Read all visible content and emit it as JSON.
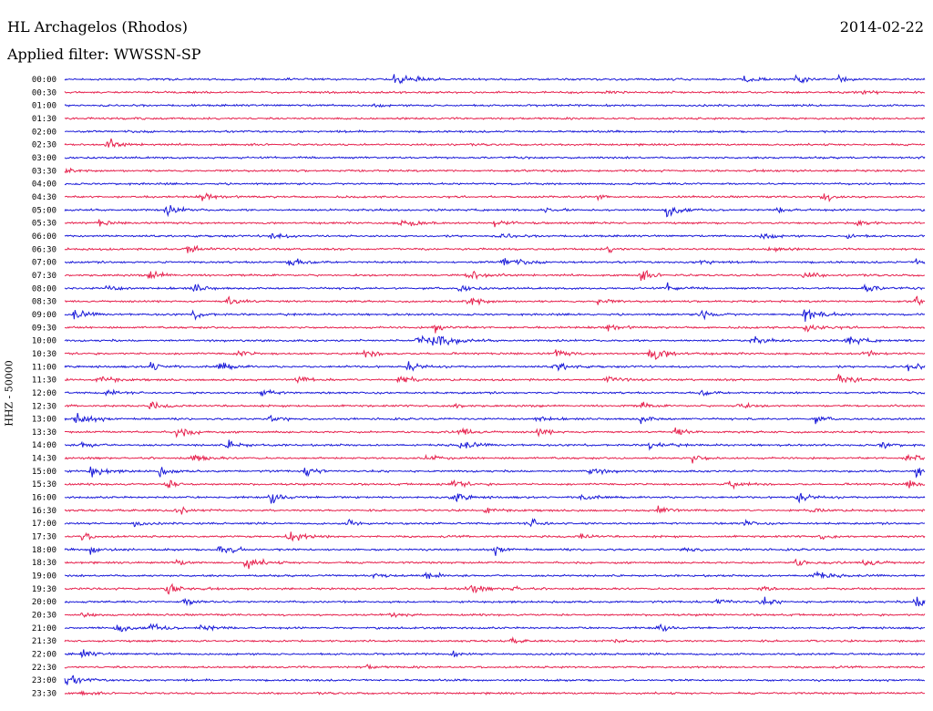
{
  "header": {
    "station": "HL Archagelos (Rhodos)",
    "date": "2014-02-22",
    "filter": "Applied filter: WWSSN-SP"
  },
  "side_label": "HHZ - 50000",
  "colors": {
    "blue": "#1a1ad8",
    "red": "#e6224e"
  },
  "chart_data": {
    "type": "line",
    "title": "HL Archagelos (Rhodos)",
    "subtitle": "Applied filter: WWSSN-SP",
    "ylabel": "HHZ - 50000",
    "date": "2014-02-22",
    "series_colors": [
      "#1a1ad8",
      "#e6224e"
    ],
    "grid": false,
    "rows": [
      {
        "label": "00:00",
        "color": "blue",
        "events": [
          [
            0.385,
            1.0
          ],
          [
            0.79,
            0.5
          ],
          [
            0.85,
            0.5
          ],
          [
            0.9,
            0.3
          ]
        ]
      },
      {
        "label": "00:30",
        "color": "red",
        "events": [
          [
            0.63,
            0.3
          ],
          [
            0.93,
            0.3
          ]
        ]
      },
      {
        "label": "01:00",
        "color": "blue",
        "events": [
          [
            0.36,
            0.2
          ]
        ]
      },
      {
        "label": "01:30",
        "color": "red",
        "events": [
          [
            0.08,
            0.15
          ]
        ]
      },
      {
        "label": "02:00",
        "color": "blue",
        "events": []
      },
      {
        "label": "02:30",
        "color": "red",
        "events": [
          [
            0.05,
            0.6
          ]
        ]
      },
      {
        "label": "03:00",
        "color": "blue",
        "events": [
          [
            0.999,
            0.4
          ]
        ]
      },
      {
        "label": "03:30",
        "color": "red",
        "events": [
          [
            0.0,
            0.3
          ]
        ]
      },
      {
        "label": "04:00",
        "color": "blue",
        "events": []
      },
      {
        "label": "04:30",
        "color": "red",
        "events": [
          [
            0.16,
            0.5
          ],
          [
            0.62,
            0.3
          ],
          [
            0.88,
            0.6
          ]
        ]
      },
      {
        "label": "05:00",
        "color": "blue",
        "events": [
          [
            0.12,
            0.6
          ],
          [
            0.56,
            0.3
          ],
          [
            0.7,
            0.8
          ],
          [
            0.83,
            0.4
          ]
        ]
      },
      {
        "label": "05:30",
        "color": "red",
        "events": [
          [
            0.04,
            0.4
          ],
          [
            0.39,
            0.7
          ],
          [
            0.5,
            0.5
          ],
          [
            0.92,
            0.5
          ]
        ]
      },
      {
        "label": "06:00",
        "color": "blue",
        "events": [
          [
            0.24,
            0.5
          ],
          [
            0.51,
            0.4
          ],
          [
            0.81,
            0.5
          ],
          [
            0.91,
            0.4
          ]
        ]
      },
      {
        "label": "06:30",
        "color": "red",
        "events": [
          [
            0.14,
            0.8
          ],
          [
            0.63,
            0.4
          ],
          [
            0.82,
            0.5
          ]
        ]
      },
      {
        "label": "07:00",
        "color": "blue",
        "events": [
          [
            0.26,
            0.7
          ],
          [
            0.51,
            0.7
          ],
          [
            0.74,
            0.4
          ],
          [
            0.99,
            0.5
          ]
        ]
      },
      {
        "label": "07:30",
        "color": "red",
        "events": [
          [
            0.1,
            0.6
          ],
          [
            0.47,
            0.7
          ],
          [
            0.67,
            0.6
          ],
          [
            0.86,
            0.5
          ]
        ]
      },
      {
        "label": "08:00",
        "color": "blue",
        "events": [
          [
            0.05,
            0.4
          ],
          [
            0.15,
            0.5
          ],
          [
            0.46,
            0.5
          ],
          [
            0.7,
            0.5
          ],
          [
            0.93,
            0.6
          ]
        ]
      },
      {
        "label": "08:30",
        "color": "red",
        "events": [
          [
            0.19,
            0.6
          ],
          [
            0.47,
            0.6
          ],
          [
            0.62,
            0.5
          ],
          [
            0.99,
            0.4
          ]
        ]
      },
      {
        "label": "09:00",
        "color": "blue",
        "events": [
          [
            0.01,
            0.6
          ],
          [
            0.15,
            0.5
          ],
          [
            0.74,
            0.6
          ],
          [
            0.86,
            1.0
          ]
        ]
      },
      {
        "label": "09:30",
        "color": "red",
        "events": [
          [
            0.43,
            0.6
          ],
          [
            0.63,
            0.5
          ],
          [
            0.86,
            0.8
          ]
        ]
      },
      {
        "label": "10:00",
        "color": "blue",
        "events": [
          [
            0.41,
            0.8
          ],
          [
            0.43,
            1.0
          ],
          [
            0.8,
            0.5
          ],
          [
            0.91,
            0.7
          ]
        ]
      },
      {
        "label": "10:30",
        "color": "red",
        "events": [
          [
            0.2,
            0.5
          ],
          [
            0.35,
            0.5
          ],
          [
            0.57,
            0.5
          ],
          [
            0.68,
            1.0
          ],
          [
            0.93,
            0.5
          ]
        ]
      },
      {
        "label": "11:00",
        "color": "blue",
        "events": [
          [
            0.1,
            0.6
          ],
          [
            0.18,
            0.6
          ],
          [
            0.4,
            0.6
          ],
          [
            0.57,
            0.6
          ],
          [
            0.98,
            0.6
          ]
        ]
      },
      {
        "label": "11:30",
        "color": "red",
        "events": [
          [
            0.04,
            0.6
          ],
          [
            0.27,
            0.5
          ],
          [
            0.39,
            0.6
          ],
          [
            0.63,
            0.5
          ],
          [
            0.9,
            0.8
          ]
        ]
      },
      {
        "label": "12:00",
        "color": "blue",
        "events": [
          [
            0.05,
            0.4
          ],
          [
            0.23,
            0.5
          ],
          [
            0.74,
            0.4
          ]
        ]
      },
      {
        "label": "12:30",
        "color": "red",
        "events": [
          [
            0.1,
            0.5
          ],
          [
            0.45,
            0.4
          ],
          [
            0.67,
            0.4
          ],
          [
            0.78,
            0.5
          ]
        ]
      },
      {
        "label": "13:00",
        "color": "blue",
        "events": [
          [
            0.01,
            0.9
          ],
          [
            0.24,
            0.5
          ],
          [
            0.55,
            0.4
          ],
          [
            0.67,
            0.5
          ],
          [
            0.87,
            0.5
          ]
        ]
      },
      {
        "label": "13:30",
        "color": "red",
        "events": [
          [
            0.13,
            0.7
          ],
          [
            0.46,
            0.6
          ],
          [
            0.55,
            0.5
          ],
          [
            0.71,
            0.5
          ]
        ]
      },
      {
        "label": "14:00",
        "color": "blue",
        "events": [
          [
            0.02,
            0.5
          ],
          [
            0.19,
            0.6
          ],
          [
            0.46,
            0.6
          ],
          [
            0.68,
            0.6
          ],
          [
            0.95,
            0.5
          ]
        ]
      },
      {
        "label": "14:30",
        "color": "red",
        "events": [
          [
            0.15,
            0.6
          ],
          [
            0.42,
            0.5
          ],
          [
            0.73,
            0.5
          ],
          [
            0.98,
            0.8
          ]
        ]
      },
      {
        "label": "15:00",
        "color": "blue",
        "events": [
          [
            0.03,
            0.7
          ],
          [
            0.11,
            0.5
          ],
          [
            0.28,
            0.6
          ],
          [
            0.61,
            0.6
          ],
          [
            0.99,
            0.8
          ]
        ]
      },
      {
        "label": "15:30",
        "color": "red",
        "events": [
          [
            0.12,
            0.5
          ],
          [
            0.45,
            0.6
          ],
          [
            0.77,
            0.6
          ],
          [
            0.98,
            0.5
          ]
        ]
      },
      {
        "label": "16:00",
        "color": "blue",
        "events": [
          [
            0.24,
            0.6
          ],
          [
            0.45,
            0.7
          ],
          [
            0.6,
            0.5
          ],
          [
            0.85,
            0.7
          ]
        ]
      },
      {
        "label": "16:30",
        "color": "red",
        "events": [
          [
            0.13,
            0.5
          ],
          [
            0.49,
            0.4
          ],
          [
            0.69,
            0.6
          ],
          [
            0.87,
            0.4
          ]
        ]
      },
      {
        "label": "17:00",
        "color": "blue",
        "events": [
          [
            0.08,
            0.4
          ],
          [
            0.33,
            0.4
          ],
          [
            0.54,
            0.6
          ],
          [
            0.79,
            0.4
          ]
        ]
      },
      {
        "label": "17:30",
        "color": "red",
        "events": [
          [
            0.02,
            0.5
          ],
          [
            0.26,
            0.8
          ],
          [
            0.6,
            0.4
          ],
          [
            0.88,
            0.4
          ]
        ]
      },
      {
        "label": "18:00",
        "color": "blue",
        "events": [
          [
            0.03,
            0.6
          ],
          [
            0.18,
            0.8
          ],
          [
            0.5,
            0.5
          ],
          [
            0.72,
            0.5
          ]
        ]
      },
      {
        "label": "18:30",
        "color": "red",
        "events": [
          [
            0.13,
            0.4
          ],
          [
            0.21,
            0.8
          ],
          [
            0.85,
            0.5
          ],
          [
            0.93,
            0.6
          ]
        ]
      },
      {
        "label": "19:00",
        "color": "blue",
        "events": [
          [
            0.36,
            0.3
          ],
          [
            0.42,
            0.6
          ],
          [
            0.87,
            0.7
          ]
        ]
      },
      {
        "label": "19:30",
        "color": "red",
        "events": [
          [
            0.12,
            0.7
          ],
          [
            0.47,
            0.6
          ],
          [
            0.52,
            0.4
          ],
          [
            0.81,
            0.4
          ]
        ]
      },
      {
        "label": "20:00",
        "color": "blue",
        "events": [
          [
            0.14,
            0.5
          ],
          [
            0.76,
            0.6
          ],
          [
            0.81,
            0.5
          ],
          [
            0.99,
            0.8
          ]
        ]
      },
      {
        "label": "20:30",
        "color": "red",
        "events": [
          [
            0.02,
            0.4
          ],
          [
            0.38,
            0.3
          ]
        ]
      },
      {
        "label": "21:00",
        "color": "blue",
        "events": [
          [
            0.06,
            0.6
          ],
          [
            0.1,
            0.6
          ],
          [
            0.16,
            0.6
          ],
          [
            0.69,
            0.4
          ]
        ]
      },
      {
        "label": "21:30",
        "color": "red",
        "events": [
          [
            0.52,
            0.3
          ],
          [
            0.64,
            0.3
          ]
        ]
      },
      {
        "label": "22:00",
        "color": "blue",
        "events": [
          [
            0.02,
            0.5
          ],
          [
            0.45,
            0.3
          ]
        ]
      },
      {
        "label": "22:30",
        "color": "red",
        "events": [
          [
            0.35,
            0.3
          ]
        ]
      },
      {
        "label": "23:00",
        "color": "blue",
        "events": [
          [
            0.0,
            0.8
          ]
        ]
      },
      {
        "label": "23:30",
        "color": "red",
        "events": [
          [
            0.02,
            0.3
          ]
        ]
      }
    ]
  }
}
